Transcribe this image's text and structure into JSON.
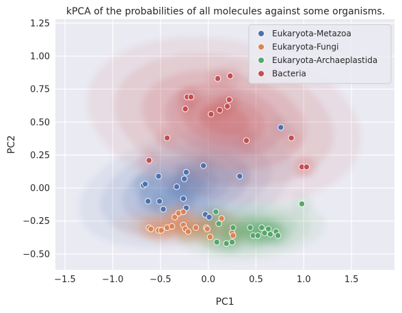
{
  "chart_data": {
    "type": "scatter",
    "title": "kPCA of the probabilities of all molecules against some organisms.",
    "xlabel": "PC1",
    "ylabel": "PC2",
    "xlim": [
      -1.6,
      1.95
    ],
    "ylim": [
      -0.62,
      1.28
    ],
    "xticks": [
      -1.5,
      -1.0,
      -0.5,
      0.0,
      0.5,
      1.0,
      1.5
    ],
    "xtick_labels": [
      "−1.5",
      "−1.0",
      "−0.5",
      "0.0",
      "0.5",
      "1.0",
      "1.5"
    ],
    "yticks": [
      -0.5,
      -0.25,
      0.0,
      0.25,
      0.5,
      0.75,
      1.0,
      1.25
    ],
    "ytick_labels": [
      "−0.50",
      "−0.25",
      "0.00",
      "0.25",
      "0.50",
      "0.75",
      "1.00",
      "1.25"
    ],
    "grid": true,
    "legend_position": "top-right",
    "density_overlay": true,
    "series": [
      {
        "name": "Eukaryota-Metazoa",
        "color": "#4c72b0",
        "points": [
          [
            -0.68,
            0.02
          ],
          [
            -0.66,
            0.03
          ],
          [
            -0.63,
            -0.1
          ],
          [
            -0.52,
            0.09
          ],
          [
            -0.51,
            -0.1
          ],
          [
            -0.47,
            -0.16
          ],
          [
            -0.33,
            0.01
          ],
          [
            -0.25,
            0.07
          ],
          [
            -0.23,
            0.12
          ],
          [
            -0.26,
            -0.08
          ],
          [
            -0.23,
            -0.15
          ],
          [
            -0.05,
            0.17
          ],
          [
            -0.03,
            -0.2
          ],
          [
            0.01,
            -0.22
          ],
          [
            0.33,
            0.09
          ],
          [
            0.76,
            0.46
          ]
        ]
      },
      {
        "name": "Eukaryota-Fungi",
        "color": "#dd8452",
        "points": [
          [
            -0.62,
            -0.3
          ],
          [
            -0.6,
            -0.31
          ],
          [
            -0.52,
            -0.32
          ],
          [
            -0.49,
            -0.32
          ],
          [
            -0.43,
            -0.3
          ],
          [
            -0.38,
            -0.29
          ],
          [
            -0.35,
            -0.22
          ],
          [
            -0.31,
            -0.19
          ],
          [
            -0.26,
            -0.18
          ],
          [
            -0.26,
            -0.28
          ],
          [
            -0.24,
            -0.31
          ],
          [
            -0.21,
            -0.33
          ],
          [
            -0.13,
            -0.3
          ],
          [
            -0.02,
            -0.3
          ],
          [
            -0.01,
            -0.31
          ],
          [
            0.02,
            -0.37
          ],
          [
            0.14,
            -0.23
          ],
          [
            0.25,
            -0.34
          ],
          [
            0.26,
            -0.36
          ]
        ]
      },
      {
        "name": "Eukaryota-Archaeplastida",
        "color": "#55a868",
        "points": [
          [
            0.08,
            -0.18
          ],
          [
            0.09,
            -0.41
          ],
          [
            0.11,
            -0.27
          ],
          [
            0.19,
            -0.42
          ],
          [
            0.25,
            -0.41
          ],
          [
            0.26,
            -0.3
          ],
          [
            0.44,
            -0.3
          ],
          [
            0.47,
            -0.36
          ],
          [
            0.52,
            -0.36
          ],
          [
            0.56,
            -0.3
          ],
          [
            0.59,
            -0.34
          ],
          [
            0.63,
            -0.31
          ],
          [
            0.65,
            -0.35
          ],
          [
            0.71,
            -0.33
          ],
          [
            0.73,
            -0.36
          ],
          [
            0.98,
            -0.12
          ]
        ]
      },
      {
        "name": "Bacteria",
        "color": "#c44e52",
        "points": [
          [
            -0.62,
            0.21
          ],
          [
            -0.43,
            0.38
          ],
          [
            -0.24,
            0.6
          ],
          [
            -0.22,
            0.69
          ],
          [
            -0.18,
            0.69
          ],
          [
            0.03,
            0.56
          ],
          [
            0.1,
            0.83
          ],
          [
            0.12,
            0.59
          ],
          [
            0.2,
            0.62
          ],
          [
            0.22,
            0.67
          ],
          [
            0.23,
            0.85
          ],
          [
            0.4,
            0.36
          ],
          [
            0.87,
            0.38
          ],
          [
            0.98,
            0.16
          ],
          [
            1.03,
            0.16
          ]
        ]
      }
    ]
  }
}
